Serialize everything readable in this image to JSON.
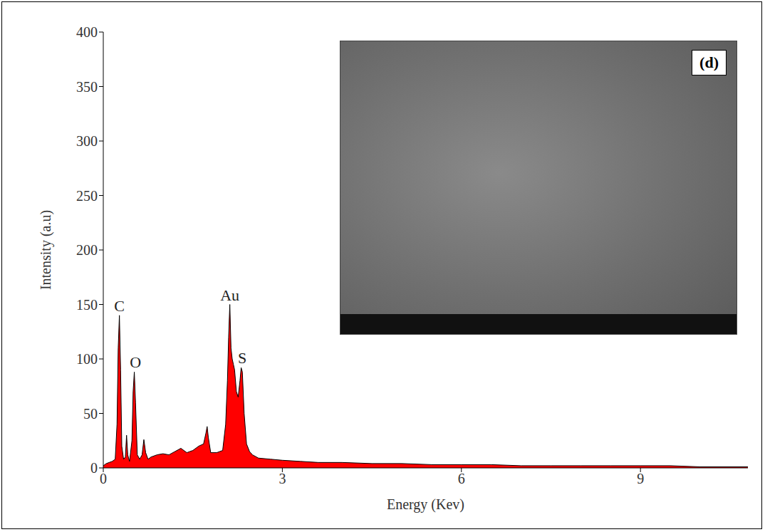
{
  "chart_data": {
    "type": "area",
    "x_label": "Energy (Kev)",
    "y_label": "Intensity (a.u)",
    "inset_label": "(d)",
    "x": [
      0,
      0.05,
      0.1,
      0.15,
      0.2,
      0.23,
      0.25,
      0.27,
      0.29,
      0.31,
      0.34,
      0.37,
      0.39,
      0.41,
      0.44,
      0.48,
      0.5,
      0.52,
      0.54,
      0.57,
      0.61,
      0.65,
      0.68,
      0.71,
      0.75,
      0.8,
      0.9,
      1.0,
      1.1,
      1.2,
      1.3,
      1.4,
      1.5,
      1.6,
      1.68,
      1.72,
      1.74,
      1.76,
      1.8,
      1.9,
      2.0,
      2.05,
      2.08,
      2.1,
      2.12,
      2.14,
      2.16,
      2.18,
      2.2,
      2.23,
      2.26,
      2.29,
      2.31,
      2.33,
      2.36,
      2.4,
      2.45,
      2.5,
      2.6,
      2.8,
      3.0,
      3.3,
      3.6,
      4.0,
      4.5,
      5.0,
      5.5,
      6.0,
      6.5,
      7.0,
      7.5,
      8.0,
      8.5,
      9.0,
      9.5,
      10.0,
      10.8
    ],
    "values": [
      2,
      4,
      5,
      6,
      8,
      40,
      110,
      140,
      90,
      20,
      8,
      10,
      30,
      12,
      6,
      25,
      70,
      88,
      60,
      12,
      8,
      12,
      26,
      14,
      8,
      10,
      12,
      13,
      12,
      15,
      18,
      14,
      16,
      20,
      22,
      32,
      38,
      28,
      14,
      14,
      16,
      40,
      80,
      120,
      150,
      110,
      100,
      95,
      90,
      70,
      65,
      80,
      92,
      88,
      50,
      22,
      15,
      12,
      9,
      8,
      7,
      6,
      5,
      5,
      4,
      4,
      3,
      3,
      3,
      2,
      2,
      2,
      2,
      2,
      2,
      1,
      1
    ],
    "color": "#ff0000",
    "xlim": [
      0,
      10.8
    ],
    "xticks": [
      0,
      3,
      6,
      9
    ],
    "ylim": [
      0,
      400
    ],
    "yticks": [
      0,
      50,
      100,
      150,
      200,
      250,
      300,
      350,
      400
    ],
    "grid": false,
    "annotations": [
      {
        "text": "C",
        "x": 0.27,
        "y": 140
      },
      {
        "text": "O",
        "x": 0.54,
        "y": 88
      },
      {
        "text": "Au",
        "x": 2.12,
        "y": 150
      },
      {
        "text": "S",
        "x": 2.33,
        "y": 92
      }
    ]
  }
}
